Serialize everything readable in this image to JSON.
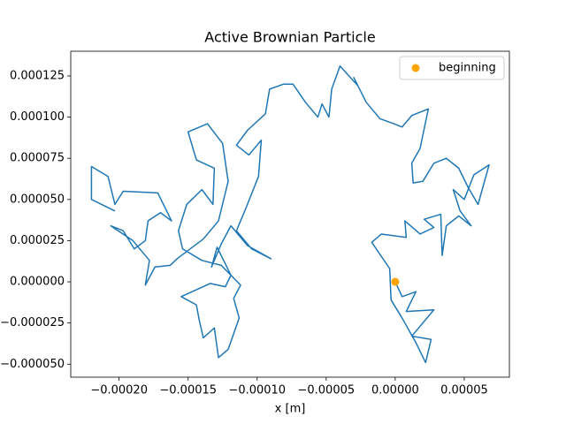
{
  "chart_data": {
    "type": "line",
    "title": "Active Brownian Particle",
    "x_label": "x [m]",
    "xlim": [
      -0.000235,
      8.27e-05
    ],
    "ylim": [
      -5.79e-05,
      0.00014
    ],
    "xticks": [
      {
        "value": -0.0002,
        "label": "−0.00020"
      },
      {
        "value": -0.00015,
        "label": "−0.00015"
      },
      {
        "value": -0.0001,
        "label": "−0.00010"
      },
      {
        "value": -5e-05,
        "label": "−0.00005"
      },
      {
        "value": 0,
        "label": "0.00000"
      },
      {
        "value": 5e-05,
        "label": "0.00005"
      }
    ],
    "yticks": [
      {
        "value": -5e-05,
        "label": "−0.000050"
      },
      {
        "value": -2.5e-05,
        "label": "−0.000025"
      },
      {
        "value": 0,
        "label": "0.000000"
      },
      {
        "value": 2.5e-05,
        "label": "0.000025"
      },
      {
        "value": 5e-05,
        "label": "0.000050"
      },
      {
        "value": 7.5e-05,
        "label": "0.000075"
      },
      {
        "value": 0.0001,
        "label": "0.000100"
      },
      {
        "value": 0.000125,
        "label": "0.000125"
      }
    ],
    "legend_position": "upper right",
    "path": {
      "color": "#1f77b4",
      "x": [
        0,
        5e-06,
        1.5e-05,
        8e-06,
        2.8e-05,
        1.2e-05,
        2.6e-05,
        2.2e-05,
        1.5e-05,
        5e-06,
        -3e-06,
        -4e-06,
        -1.7e-05,
        -1e-05,
        8e-06,
        7e-06,
        1.8e-05,
        2.8e-05,
        2.1e-05,
        3.3e-05,
        3.4e-05,
        3.7e-05,
        4.6e-05,
        5.5e-05,
        4.7e-05,
        4.2e-05,
        5e-05,
        5.7e-05,
        6.8e-05,
        6e-05,
        5.3e-05,
        4.6e-05,
        3.7e-05,
        2.8e-05,
        2e-05,
        1.3e-05,
        1.2e-05,
        1.8e-05,
        2.4e-05,
        1.2e-05,
        5e-06,
        -1e-06,
        -1.1e-05,
        -2.1e-05,
        -3e-05,
        -2.7e-05,
        -4e-05,
        -4.6e-05,
        -4.8e-05,
        -5.3e-05,
        -5.6e-05,
        -6.5e-05,
        -7.4e-05,
        -8.1e-05,
        -9.1e-05,
        -9.4e-05,
        -0.000107,
        -0.000115,
        -0.000106,
        -9.7e-05,
        -9.9e-05,
        -0.000108,
        -0.000115,
        -0.000104,
        -9e-05,
        -0.000107,
        -0.000119,
        -0.000126,
        -0.000133,
        -0.000129,
        -0.000119,
        -0.000123,
        -0.000134,
        -0.000155,
        -0.000144,
        -0.000142,
        -0.000139,
        -0.000131,
        -0.000128,
        -0.000121,
        -0.000113,
        -0.000117,
        -0.000112,
        -0.000126,
        -0.00014,
        -0.000154,
        -0.000157,
        -0.000151,
        -0.00014,
        -0.000132,
        -0.000131,
        -0.000144,
        -0.00015,
        -0.000136,
        -0.000125,
        -0.000121,
        -0.000128,
        -0.000139,
        -0.000158,
        -0.000163,
        -0.000174,
        -0.000181,
        -0.000178,
        -0.00019,
        -0.000206,
        -0.000197,
        -0.000189,
        -0.000181,
        -0.000179,
        -0.00017,
        -0.000162,
        -0.000172,
        -0.000197,
        -0.000203,
        -0.000208,
        -0.00022,
        -0.00022,
        -0.000203
      ],
      "y": [
        0,
        -9e-06,
        -6e-06,
        -1.8e-05,
        -1.7e-05,
        -3.3e-05,
        -3.5e-05,
        -4.9e-05,
        -3.7e-05,
        -2.2e-05,
        -1.1e-05,
        8e-06,
        2.4e-05,
        2.9e-05,
        2.7e-05,
        3.7e-05,
        2.9e-05,
        3.3e-05,
        3.8e-05,
        4.1e-05,
        1.6e-05,
        3.4e-05,
        4e-05,
        3.4e-05,
        4.3e-05,
        5.6e-05,
        5e-05,
        6.5e-05,
        7.1e-05,
        4.7e-05,
        5.7e-05,
        6.9e-05,
        7.5e-05,
        7.2e-05,
        6.1e-05,
        6e-05,
        7.2e-05,
        8.1e-05,
        0.000105,
        0.000101,
        9.4e-05,
        9.6e-05,
        9.9e-05,
        0.000109,
        0.000124,
        0.000119,
        0.000131,
        0.000117,
        0.0001,
        0.000108,
        0.0001,
        0.000109,
        0.00012,
        0.00012,
        0.000117,
        0.000102,
        9.2e-05,
        8.3e-05,
        7.7e-05,
        8.6e-05,
        6.4e-05,
        4.5e-05,
        3.1e-05,
        2e-05,
        1.4e-05,
        2.2e-05,
        3.4e-05,
        2.3e-05,
        9e-06,
        2.1e-05,
        4e-06,
        -3e-06,
        -1e-06,
        -9e-06,
        -1.4e-05,
        -2.3e-05,
        -3.4e-05,
        -2.8e-05,
        -4.6e-05,
        -4.1e-05,
        -2.2e-05,
        -1e-05,
        -2e-06,
        1e-05,
        1.3e-05,
        2e-05,
        3.1e-05,
        4.7e-05,
        5.6e-05,
        4.7e-05,
        6.9e-05,
        7.4e-05,
        9.1e-05,
        9.6e-05,
        8.4e-05,
        6.1e-05,
        3.7e-05,
        2.6e-05,
        1.4e-05,
        1e-05,
        9e-06,
        -2e-06,
        1.3e-05,
        2.5e-05,
        3.4e-05,
        3.1e-05,
        2e-05,
        2.5e-05,
        3.7e-05,
        4.2e-05,
        3.7e-05,
        5.4e-05,
        5.5e-05,
        4.7e-05,
        6.4e-05,
        7e-05,
        5e-05,
        4.3e-05
      ]
    },
    "marker": {
      "name": "beginning",
      "color": "orange",
      "x": [
        0
      ],
      "y": [
        0
      ]
    }
  }
}
